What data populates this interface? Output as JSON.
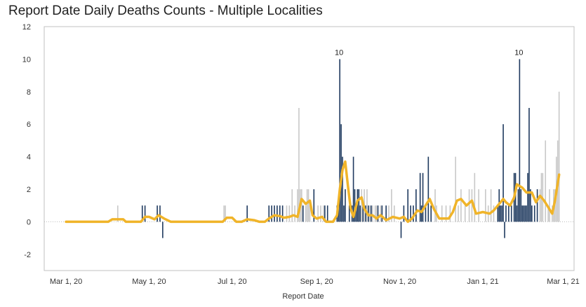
{
  "chart_data": {
    "type": "bar",
    "title": "Report Date Daily Deaths Counts - Multiple Localities",
    "xlabel": "Report Date",
    "ylabel": "",
    "ylim": [
      -3,
      12
    ],
    "y_ticks": [
      -2,
      0,
      2,
      4,
      6,
      8,
      10,
      12
    ],
    "x_ticks": [
      {
        "date": "2020-03-01",
        "label": "Mar 1, 20"
      },
      {
        "date": "2020-05-01",
        "label": "May 1, 20"
      },
      {
        "date": "2020-07-01",
        "label": "Jul 1, 20"
      },
      {
        "date": "2020-09-01",
        "label": "Sep 1, 20"
      },
      {
        "date": "2020-11-01",
        "label": "Nov 1, 20"
      },
      {
        "date": "2021-01-01",
        "label": "Jan 1, 21"
      },
      {
        "date": "2021-03-01",
        "label": "Mar 1, 21"
      }
    ],
    "x_range": [
      "2020-02-14",
      "2021-03-09"
    ],
    "grid": false,
    "zero_line": true,
    "colors": {
      "dark_bar": "#1f3a5f",
      "light_bar": "#c8c8c8",
      "line": "#f0b429",
      "zero_line": "#bbbbbb"
    },
    "series": [
      {
        "style": "dark-bar",
        "points": [
          [
            "2020-04-26",
            1
          ],
          [
            "2020-04-28",
            1
          ],
          [
            "2020-05-07",
            1
          ],
          [
            "2020-05-09",
            1
          ],
          [
            "2020-05-11",
            -1
          ],
          [
            "2020-07-12",
            1
          ],
          [
            "2020-07-28",
            1
          ],
          [
            "2020-07-30",
            1
          ],
          [
            "2020-08-01",
            1
          ],
          [
            "2020-08-03",
            1
          ],
          [
            "2020-08-05",
            1
          ],
          [
            "2020-08-07",
            1
          ],
          [
            "2020-08-22",
            1
          ],
          [
            "2020-08-30",
            2
          ],
          [
            "2020-09-07",
            1
          ],
          [
            "2020-09-09",
            1
          ],
          [
            "2020-09-16",
            1
          ],
          [
            "2020-09-17",
            1
          ],
          [
            "2020-09-18",
            10
          ],
          [
            "2020-09-19",
            6
          ],
          [
            "2020-09-20",
            4
          ],
          [
            "2020-09-21",
            1
          ],
          [
            "2020-09-22",
            2
          ],
          [
            "2020-09-25",
            1
          ],
          [
            "2020-09-27",
            1
          ],
          [
            "2020-09-28",
            4
          ],
          [
            "2020-09-29",
            2
          ],
          [
            "2020-09-30",
            1
          ],
          [
            "2020-10-01",
            2
          ],
          [
            "2020-10-02",
            2
          ],
          [
            "2020-10-03",
            1
          ],
          [
            "2020-10-05",
            1
          ],
          [
            "2020-10-07",
            1
          ],
          [
            "2020-10-09",
            1
          ],
          [
            "2020-10-11",
            1
          ],
          [
            "2020-10-16",
            1
          ],
          [
            "2020-10-19",
            1
          ],
          [
            "2020-10-22",
            1
          ],
          [
            "2020-11-02",
            -1
          ],
          [
            "2020-11-04",
            1
          ],
          [
            "2020-11-07",
            2
          ],
          [
            "2020-11-09",
            1
          ],
          [
            "2020-11-11",
            1
          ],
          [
            "2020-11-13",
            2
          ],
          [
            "2020-11-16",
            3
          ],
          [
            "2020-11-17",
            1
          ],
          [
            "2020-11-18",
            3
          ],
          [
            "2020-11-20",
            1
          ],
          [
            "2020-11-22",
            4
          ],
          [
            "2020-11-24",
            1
          ],
          [
            "2021-01-12",
            1
          ],
          [
            "2021-01-13",
            2
          ],
          [
            "2021-01-14",
            1
          ],
          [
            "2021-01-15",
            1
          ],
          [
            "2021-01-16",
            6
          ],
          [
            "2021-01-17",
            -1
          ],
          [
            "2021-01-18",
            1
          ],
          [
            "2021-01-20",
            1
          ],
          [
            "2021-01-22",
            1
          ],
          [
            "2021-01-24",
            3
          ],
          [
            "2021-01-25",
            3
          ],
          [
            "2021-01-26",
            1
          ],
          [
            "2021-01-27",
            2
          ],
          [
            "2021-01-28",
            10
          ],
          [
            "2021-01-29",
            2
          ],
          [
            "2021-01-30",
            1
          ],
          [
            "2021-01-31",
            1
          ],
          [
            "2021-02-01",
            1
          ],
          [
            "2021-02-02",
            1
          ],
          [
            "2021-02-03",
            3
          ],
          [
            "2021-02-04",
            7
          ],
          [
            "2021-02-05",
            2
          ],
          [
            "2021-02-06",
            1
          ],
          [
            "2021-02-08",
            1
          ],
          [
            "2021-02-10",
            2
          ]
        ]
      },
      {
        "style": "light-bar",
        "points": [
          [
            "2020-04-08",
            1
          ],
          [
            "2020-06-25",
            1
          ],
          [
            "2020-06-26",
            1
          ],
          [
            "2020-08-10",
            1
          ],
          [
            "2020-08-12",
            1
          ],
          [
            "2020-08-14",
            2
          ],
          [
            "2020-08-16",
            1
          ],
          [
            "2020-08-18",
            2
          ],
          [
            "2020-08-19",
            7
          ],
          [
            "2020-08-20",
            2
          ],
          [
            "2020-08-21",
            2
          ],
          [
            "2020-08-24",
            1
          ],
          [
            "2020-08-25",
            2
          ],
          [
            "2020-08-26",
            2
          ],
          [
            "2020-08-27",
            1
          ],
          [
            "2020-09-02",
            1
          ],
          [
            "2020-09-04",
            1
          ],
          [
            "2020-09-06",
            1
          ],
          [
            "2020-10-04",
            2
          ],
          [
            "2020-10-06",
            2
          ],
          [
            "2020-10-08",
            2
          ],
          [
            "2020-10-10",
            1
          ],
          [
            "2020-10-12",
            1
          ],
          [
            "2020-10-14",
            1
          ],
          [
            "2020-10-15",
            1
          ],
          [
            "2020-10-18",
            1
          ],
          [
            "2020-10-24",
            1
          ],
          [
            "2020-10-26",
            2
          ],
          [
            "2020-10-28",
            1
          ],
          [
            "2020-11-27",
            2
          ],
          [
            "2020-11-28",
            1
          ],
          [
            "2020-12-02",
            1
          ],
          [
            "2020-12-05",
            1
          ],
          [
            "2020-12-08",
            1
          ],
          [
            "2020-12-12",
            4
          ],
          [
            "2020-12-14",
            1
          ],
          [
            "2020-12-16",
            2
          ],
          [
            "2020-12-19",
            1
          ],
          [
            "2020-12-22",
            2
          ],
          [
            "2020-12-24",
            2
          ],
          [
            "2020-12-26",
            3
          ],
          [
            "2020-12-29",
            2
          ],
          [
            "2021-01-03",
            2
          ],
          [
            "2021-01-05",
            1
          ],
          [
            "2021-01-07",
            2
          ],
          [
            "2021-01-09",
            1
          ],
          [
            "2021-02-12",
            2
          ],
          [
            "2021-02-13",
            3
          ],
          [
            "2021-02-14",
            3
          ],
          [
            "2021-02-16",
            5
          ],
          [
            "2021-02-18",
            1
          ],
          [
            "2021-02-19",
            2
          ],
          [
            "2021-02-21",
            1
          ],
          [
            "2021-02-22",
            2
          ],
          [
            "2021-02-23",
            2
          ],
          [
            "2021-02-24",
            4
          ],
          [
            "2021-02-25",
            5
          ],
          [
            "2021-02-26",
            8
          ]
        ]
      },
      {
        "style": "moving-average-line",
        "points": [
          [
            "2020-03-01",
            0
          ],
          [
            "2020-04-01",
            0
          ],
          [
            "2020-04-04",
            0.15
          ],
          [
            "2020-04-12",
            0.15
          ],
          [
            "2020-04-14",
            0
          ],
          [
            "2020-04-25",
            0
          ],
          [
            "2020-04-28",
            0.3
          ],
          [
            "2020-05-01",
            0.3
          ],
          [
            "2020-05-05",
            0.15
          ],
          [
            "2020-05-08",
            0.4
          ],
          [
            "2020-05-12",
            0.2
          ],
          [
            "2020-05-17",
            0
          ],
          [
            "2020-06-24",
            0
          ],
          [
            "2020-06-27",
            0.25
          ],
          [
            "2020-07-01",
            0.25
          ],
          [
            "2020-07-04",
            0
          ],
          [
            "2020-07-08",
            0
          ],
          [
            "2020-07-12",
            0.15
          ],
          [
            "2020-07-17",
            0.1
          ],
          [
            "2020-07-21",
            0
          ],
          [
            "2020-07-25",
            0
          ],
          [
            "2020-07-28",
            0.2
          ],
          [
            "2020-08-01",
            0.4
          ],
          [
            "2020-08-05",
            0.35
          ],
          [
            "2020-08-08",
            0.25
          ],
          [
            "2020-08-12",
            0.3
          ],
          [
            "2020-08-15",
            0.4
          ],
          [
            "2020-08-18",
            0.3
          ],
          [
            "2020-08-21",
            1.4
          ],
          [
            "2020-08-24",
            1.1
          ],
          [
            "2020-08-27",
            1.3
          ],
          [
            "2020-08-29",
            0.4
          ],
          [
            "2020-09-01",
            0.2
          ],
          [
            "2020-09-05",
            0.3
          ],
          [
            "2020-09-08",
            0
          ],
          [
            "2020-09-13",
            0
          ],
          [
            "2020-09-16",
            0.4
          ],
          [
            "2020-09-18",
            2.0
          ],
          [
            "2020-09-20",
            3.2
          ],
          [
            "2020-09-22",
            3.7
          ],
          [
            "2020-09-24",
            2.2
          ],
          [
            "2020-09-26",
            0.8
          ],
          [
            "2020-09-28",
            0.3
          ],
          [
            "2020-10-01",
            1.3
          ],
          [
            "2020-10-04",
            1.5
          ],
          [
            "2020-10-06",
            0.8
          ],
          [
            "2020-10-09",
            0.4
          ],
          [
            "2020-10-12",
            0.4
          ],
          [
            "2020-10-15",
            0.2
          ],
          [
            "2020-10-18",
            0.4
          ],
          [
            "2020-10-22",
            0.1
          ],
          [
            "2020-10-27",
            0.3
          ],
          [
            "2020-11-01",
            0.2
          ],
          [
            "2020-11-04",
            0.3
          ],
          [
            "2020-11-07",
            0
          ],
          [
            "2020-11-10",
            0.2
          ],
          [
            "2020-11-14",
            0.7
          ],
          [
            "2020-11-17",
            0.6
          ],
          [
            "2020-11-20",
            1.0
          ],
          [
            "2020-11-23",
            1.4
          ],
          [
            "2020-11-26",
            0.8
          ],
          [
            "2020-11-30",
            0.2
          ],
          [
            "2020-12-07",
            0.2
          ],
          [
            "2020-12-10",
            0.6
          ],
          [
            "2020-12-13",
            1.3
          ],
          [
            "2020-12-16",
            1.4
          ],
          [
            "2020-12-20",
            1.0
          ],
          [
            "2020-12-24",
            1.3
          ],
          [
            "2020-12-27",
            0.5
          ],
          [
            "2021-01-01",
            0.6
          ],
          [
            "2021-01-06",
            0.5
          ],
          [
            "2021-01-09",
            0.7
          ],
          [
            "2021-01-13",
            1.1
          ],
          [
            "2021-01-16",
            1.4
          ],
          [
            "2021-01-18",
            1.2
          ],
          [
            "2021-01-21",
            1.0
          ],
          [
            "2021-01-24",
            1.5
          ],
          [
            "2021-01-26",
            2.3
          ],
          [
            "2021-01-30",
            2.1
          ],
          [
            "2021-02-02",
            1.8
          ],
          [
            "2021-02-06",
            1.8
          ],
          [
            "2021-02-09",
            1.2
          ],
          [
            "2021-02-12",
            1.6
          ],
          [
            "2021-02-15",
            1.3
          ],
          [
            "2021-02-18",
            0.9
          ],
          [
            "2021-02-21",
            0.5
          ],
          [
            "2021-02-23",
            1.3
          ],
          [
            "2021-02-26",
            2.9
          ]
        ]
      }
    ],
    "annotations": [
      {
        "date": "2020-09-18",
        "value": 10,
        "text": "10"
      },
      {
        "date": "2021-01-28",
        "value": 10,
        "text": "10"
      }
    ]
  }
}
